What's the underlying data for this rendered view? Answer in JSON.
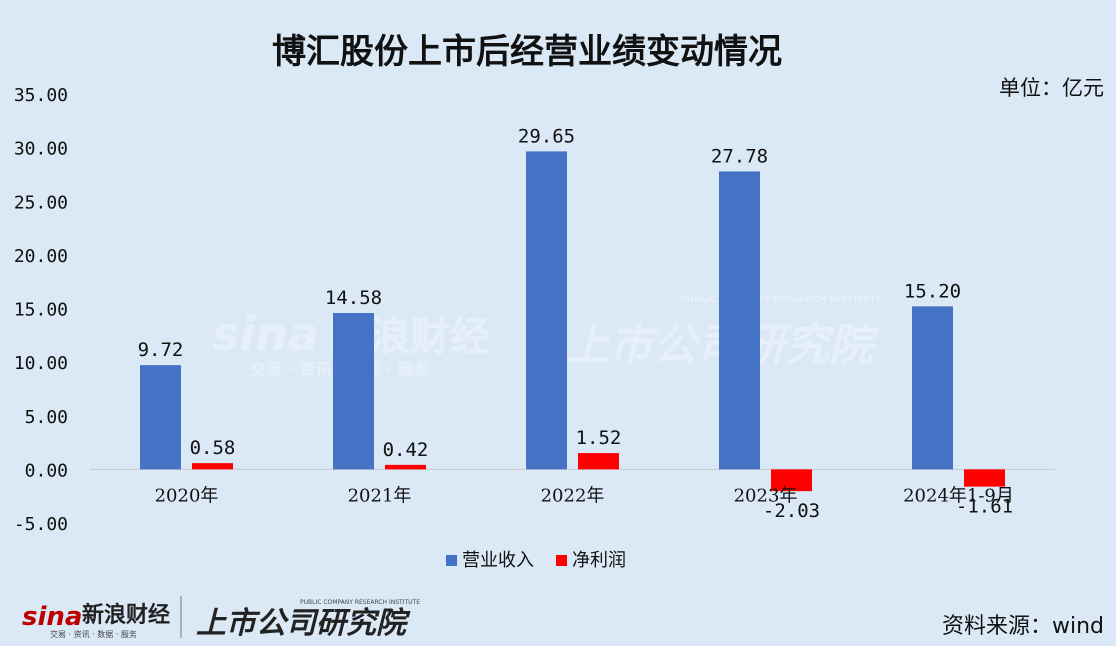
{
  "chart_data": {
    "type": "bar",
    "title": "博汇股份上市后经营业绩变动情况",
    "unit": "单位：亿元",
    "source": "资料来源：wind",
    "categories": [
      "2020年",
      "2021年",
      "2022年",
      "2023年",
      "2024年1-9月"
    ],
    "series": [
      {
        "name": "营业收入",
        "color": "#4472c4",
        "values": [
          9.72,
          14.58,
          29.65,
          27.78,
          15.2
        ],
        "labels": [
          "9.72",
          "14.58",
          "29.65",
          "27.78",
          "15.20"
        ]
      },
      {
        "name": "净利润",
        "color": "#ff0000",
        "values": [
          0.58,
          0.42,
          1.52,
          -2.03,
          -1.61
        ],
        "labels": [
          "0.58",
          "0.42",
          "1.52",
          "-2.03",
          "-1.61"
        ]
      }
    ],
    "ylim": [
      -5,
      35
    ],
    "yticks": [
      35,
      30,
      25,
      20,
      15,
      10,
      5,
      0,
      -5
    ],
    "ytick_labels": [
      "35.00",
      "30.00",
      "25.00",
      "20.00",
      "15.00",
      "10.00",
      "5.00",
      "0.00",
      "-5.00"
    ],
    "grid": false,
    "legend_position": "bottom"
  },
  "branding": {
    "sina_logo": "sina",
    "sina_name": "新浪财经",
    "sina_sub": "交易 · 资讯 · 数据 · 服务",
    "institute_name": "上市公司研究院",
    "institute_en": "PUBLIC COMPANY RESEARCH INSTITUTE"
  }
}
